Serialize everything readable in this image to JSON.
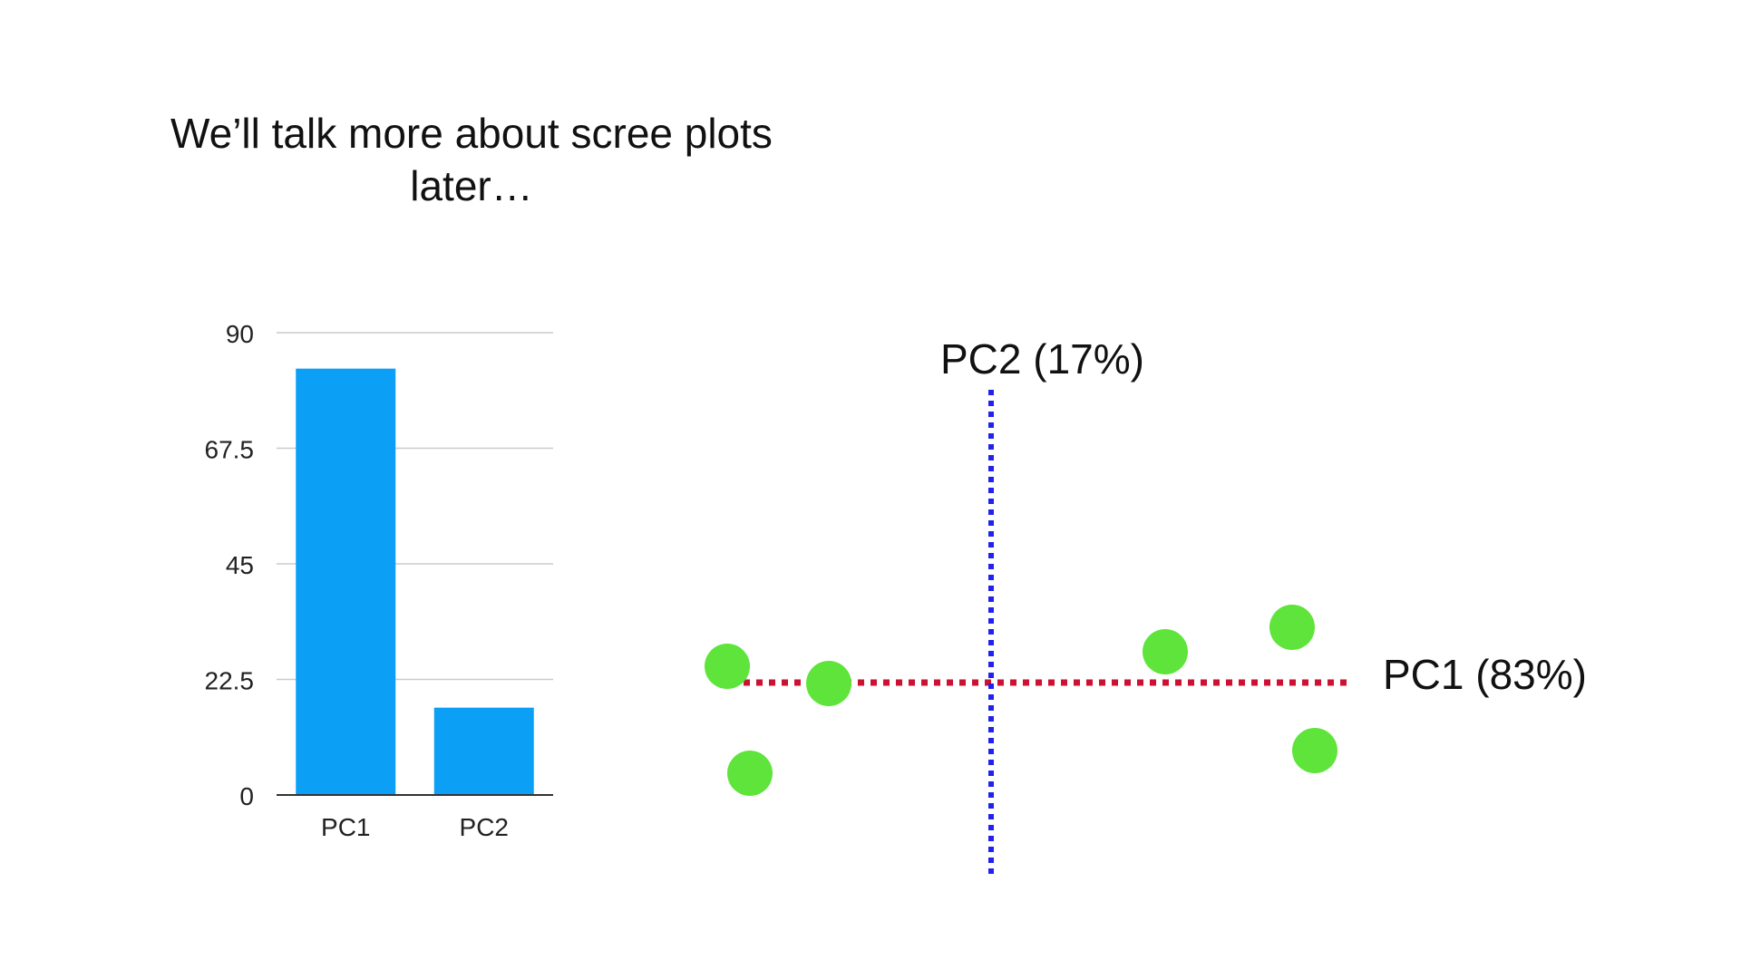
{
  "slide": {
    "caption_line1": "We’ll talk more about scree plots",
    "caption_line2": "later…"
  },
  "chart_data": [
    {
      "type": "bar",
      "categories": [
        "PC1",
        "PC2"
      ],
      "values": [
        83,
        17
      ],
      "ylim": [
        0,
        90
      ],
      "yticks": [
        0,
        22.5,
        45,
        67.5,
        90
      ],
      "ytick_labels": [
        "0",
        "22.5",
        "45",
        "67.5",
        "90"
      ],
      "grid": true,
      "bar_color": "#0b9ff5",
      "grid_color": "#cccccc",
      "axis_color": "#333333"
    },
    {
      "type": "scatter",
      "point_count": 6,
      "point_color": "#5ee43a",
      "pc1_label": "PC1 (83%)",
      "pc2_label": "PC2 (17%)",
      "pc1_line_color": "#cc1133",
      "pc2_line_color": "#2222ee",
      "pc1_line_style": "dotted",
      "pc2_line_style": "dotted"
    }
  ]
}
